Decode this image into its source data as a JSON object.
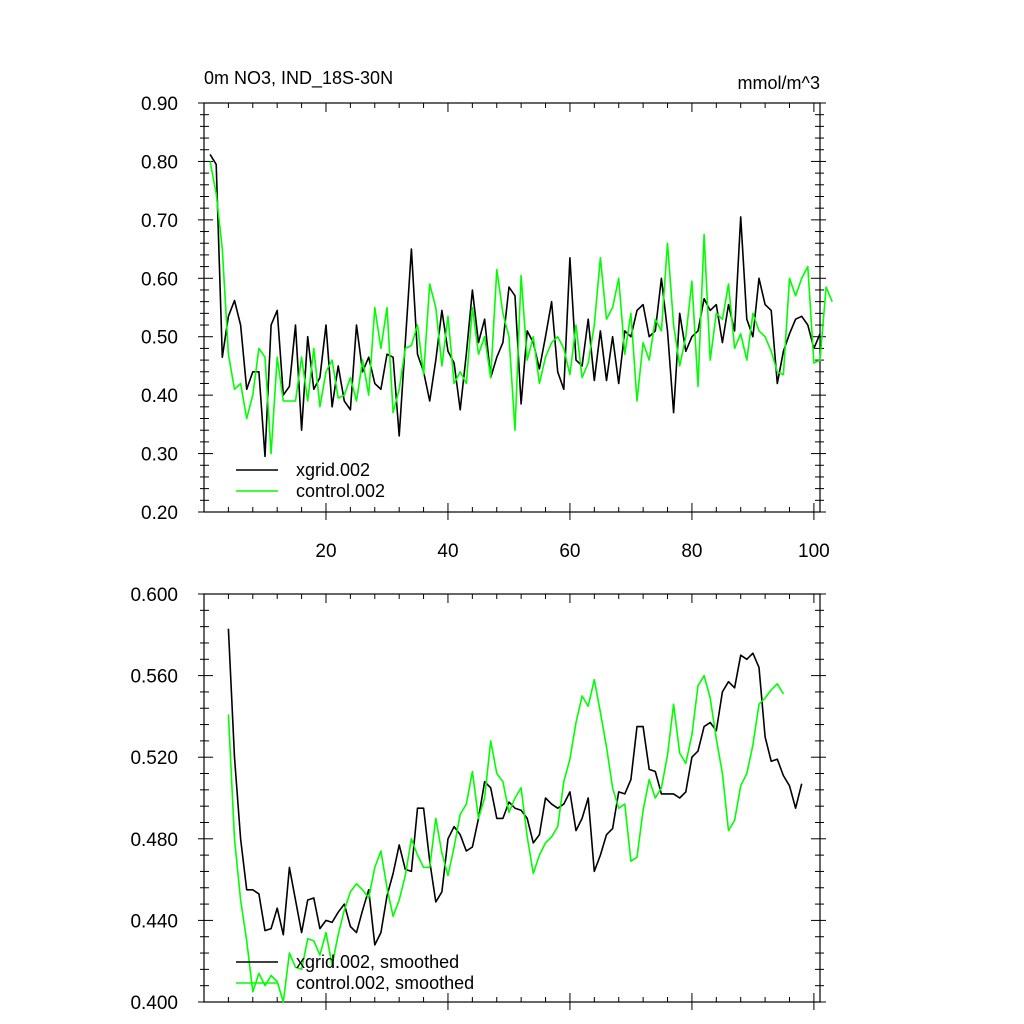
{
  "figure": {
    "title": "0m NO3, IND_18S-30N",
    "units": "mmol/m^3"
  },
  "chart_data": [
    {
      "type": "line",
      "name": "raw",
      "title": "0m NO3, IND_18S-30N",
      "units": "mmol/m^3",
      "xlim": [
        0,
        101
      ],
      "ylim": [
        0.2,
        0.9
      ],
      "xticks": [
        20,
        40,
        60,
        80,
        100
      ],
      "xtick_labels": [
        "20",
        "40",
        "60",
        "80",
        "100"
      ],
      "yticks": [
        0.2,
        0.3,
        0.4,
        0.5,
        0.6,
        0.7,
        0.8,
        0.9
      ],
      "ytick_labels": [
        "0.20",
        "0.30",
        "0.40",
        "0.50",
        "0.60",
        "0.70",
        "0.80",
        "0.90"
      ],
      "legend_position": "bottom-left",
      "series": [
        {
          "name": "xgrid.002",
          "color": "#000000",
          "x_start": 1,
          "values": [
            0.812,
            0.795,
            0.465,
            0.535,
            0.562,
            0.52,
            0.41,
            0.44,
            0.44,
            0.295,
            0.52,
            0.545,
            0.4,
            0.415,
            0.52,
            0.34,
            0.5,
            0.41,
            0.43,
            0.52,
            0.38,
            0.45,
            0.39,
            0.375,
            0.52,
            0.44,
            0.465,
            0.42,
            0.41,
            0.47,
            0.465,
            0.33,
            0.49,
            0.65,
            0.47,
            0.44,
            0.39,
            0.46,
            0.545,
            0.475,
            0.455,
            0.375,
            0.47,
            0.58,
            0.49,
            0.53,
            0.43,
            0.465,
            0.49,
            0.585,
            0.57,
            0.385,
            0.51,
            0.49,
            0.445,
            0.5,
            0.56,
            0.44,
            0.41,
            0.635,
            0.46,
            0.45,
            0.53,
            0.425,
            0.51,
            0.425,
            0.5,
            0.42,
            0.51,
            0.5,
            0.545,
            0.555,
            0.5,
            0.51,
            0.6,
            0.51,
            0.37,
            0.54,
            0.475,
            0.5,
            0.51,
            0.565,
            0.545,
            0.555,
            0.49,
            0.555,
            0.51,
            0.705,
            0.53,
            0.5,
            0.6,
            0.555,
            0.545,
            0.42,
            0.475,
            0.505,
            0.53,
            0.535,
            0.52,
            0.48,
            0.505
          ]
        },
        {
          "name": "control.002",
          "color": "#00ff00",
          "x_start": 1,
          "values": [
            0.8,
            0.745,
            0.65,
            0.47,
            0.41,
            0.42,
            0.36,
            0.4,
            0.48,
            0.465,
            0.3,
            0.465,
            0.39,
            0.39,
            0.39,
            0.465,
            0.39,
            0.48,
            0.38,
            0.44,
            0.46,
            0.395,
            0.4,
            0.43,
            0.39,
            0.46,
            0.4,
            0.55,
            0.48,
            0.55,
            0.37,
            0.41,
            0.48,
            0.485,
            0.52,
            0.435,
            0.59,
            0.55,
            0.45,
            0.535,
            0.42,
            0.44,
            0.42,
            0.55,
            0.47,
            0.5,
            0.43,
            0.615,
            0.54,
            0.5,
            0.34,
            0.605,
            0.46,
            0.5,
            0.42,
            0.465,
            0.49,
            0.5,
            0.48,
            0.435,
            0.52,
            0.43,
            0.455,
            0.52,
            0.635,
            0.53,
            0.55,
            0.6,
            0.47,
            0.54,
            0.39,
            0.49,
            0.46,
            0.53,
            0.51,
            0.66,
            0.52,
            0.45,
            0.5,
            0.595,
            0.415,
            0.675,
            0.46,
            0.54,
            0.53,
            0.59,
            0.48,
            0.505,
            0.46,
            0.54,
            0.51,
            0.5,
            0.475,
            0.44,
            0.435,
            0.6,
            0.57,
            0.6,
            0.62,
            0.455,
            0.46,
            0.585,
            0.56
          ]
        }
      ]
    },
    {
      "type": "line",
      "name": "smoothed",
      "xlim": [
        0,
        101
      ],
      "ylim": [
        0.4,
        0.6
      ],
      "yticks": [
        0.4,
        0.44,
        0.48,
        0.52,
        0.56,
        0.6
      ],
      "ytick_labels": [
        "0.400",
        "0.440",
        "0.480",
        "0.520",
        "0.560",
        "0.600"
      ],
      "xticks": [
        20,
        40,
        60,
        80,
        100
      ],
      "xtick_labels": [],
      "legend_position": "bottom-left",
      "series": [
        {
          "name": "xgrid.002, smoothed",
          "color": "#000000",
          "x_start": 4,
          "values": [
            0.583,
            0.52,
            0.48,
            0.455,
            0.455,
            0.453,
            0.435,
            0.436,
            0.446,
            0.433,
            0.466,
            0.45,
            0.434,
            0.45,
            0.451,
            0.436,
            0.44,
            0.439,
            0.444,
            0.448,
            0.437,
            0.434,
            0.445,
            0.455,
            0.428,
            0.434,
            0.452,
            0.463,
            0.477,
            0.465,
            0.464,
            0.495,
            0.495,
            0.469,
            0.449,
            0.454,
            0.48,
            0.486,
            0.482,
            0.474,
            0.476,
            0.49,
            0.508,
            0.505,
            0.49,
            0.49,
            0.498,
            0.495,
            0.494,
            0.49,
            0.478,
            0.482,
            0.5,
            0.497,
            0.495,
            0.497,
            0.503,
            0.484,
            0.49,
            0.5,
            0.464,
            0.472,
            0.482,
            0.485,
            0.503,
            0.502,
            0.509,
            0.535,
            0.535,
            0.514,
            0.513,
            0.502,
            0.502,
            0.502,
            0.5,
            0.503,
            0.52,
            0.523,
            0.535,
            0.537,
            0.533,
            0.552,
            0.557,
            0.554,
            0.57,
            0.568,
            0.571,
            0.564,
            0.53,
            0.518,
            0.519,
            0.511,
            0.506,
            0.495,
            0.507
          ]
        },
        {
          "name": "control.002, smoothed",
          "color": "#00ff00",
          "x_start": 4,
          "values": [
            0.541,
            0.48,
            0.45,
            0.43,
            0.405,
            0.414,
            0.408,
            0.413,
            0.41,
            0.4,
            0.424,
            0.417,
            0.416,
            0.431,
            0.43,
            0.423,
            0.434,
            0.418,
            0.433,
            0.445,
            0.454,
            0.458,
            0.455,
            0.451,
            0.466,
            0.474,
            0.456,
            0.442,
            0.45,
            0.462,
            0.48,
            0.472,
            0.466,
            0.466,
            0.49,
            0.473,
            0.462,
            0.476,
            0.492,
            0.497,
            0.513,
            0.49,
            0.5,
            0.528,
            0.512,
            0.508,
            0.493,
            0.5,
            0.505,
            0.481,
            0.463,
            0.472,
            0.478,
            0.481,
            0.486,
            0.508,
            0.519,
            0.537,
            0.55,
            0.545,
            0.558,
            0.542,
            0.525,
            0.505,
            0.495,
            0.497,
            0.469,
            0.471,
            0.494,
            0.509,
            0.5,
            0.505,
            0.521,
            0.546,
            0.522,
            0.517,
            0.531,
            0.555,
            0.56,
            0.549,
            0.529,
            0.512,
            0.484,
            0.489,
            0.506,
            0.512,
            0.526,
            0.546,
            0.549,
            0.553,
            0.556,
            0.551
          ]
        }
      ]
    }
  ]
}
